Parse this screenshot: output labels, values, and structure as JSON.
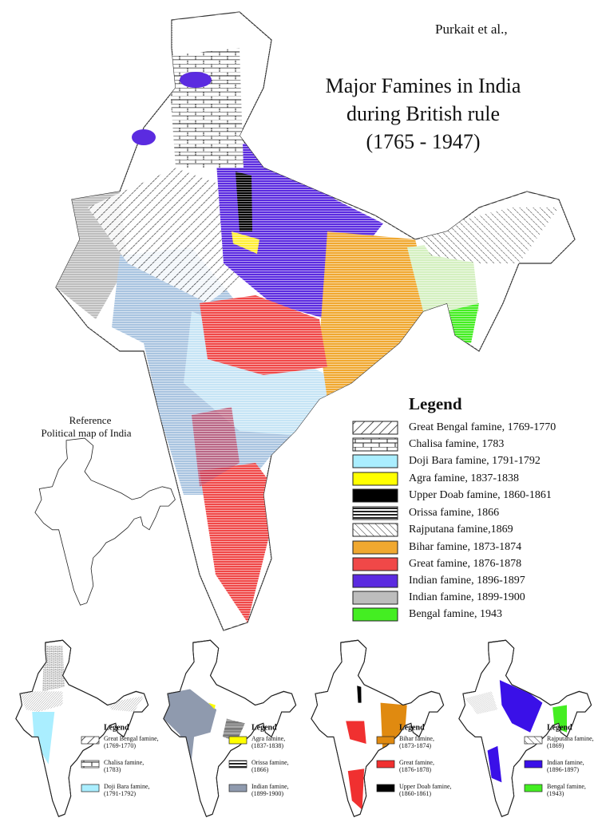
{
  "credit": "Purkait et al.,",
  "title": [
    "Major Famines in India",
    "during British rule",
    "(1765 - 1947)"
  ],
  "legend": {
    "title": "Legend",
    "items": [
      "Great Bengal famine, 1769-1770",
      "Chalisa famine, 1783",
      "Doji Bara famine, 1791-1792",
      "Agra famine, 1837-1838",
      "Upper Doab famine, 1860-1861",
      "Orissa famine, 1866",
      "Rajputana famine,1869",
      "Bihar famine, 1873-1874",
      "Great famine, 1876-1878",
      "Indian famine, 1896-1897",
      "Indian famine, 1899-1900",
      "Bengal famine, 1943"
    ]
  },
  "reference": {
    "title": "Reference",
    "subtitle": "Political map of India"
  },
  "panels": [
    {
      "legend_title": "Legend",
      "items": [
        [
          "Great Bengal famine,",
          "(1769-1770)"
        ],
        [
          "Chalisa famine,",
          "(1783)"
        ],
        [
          "Doji Bara famine,",
          "(1791-1792)"
        ]
      ]
    },
    {
      "legend_title": "Legend",
      "items": [
        [
          "Agra famine,",
          "(1837-1838)"
        ],
        [
          "Orissa famine,",
          "(1866)"
        ],
        [
          "Indian famine,",
          "(1899-1900)"
        ]
      ]
    },
    {
      "legend_title": "Legend",
      "items": [
        [
          "Bihar famine,",
          "(1873-1874)"
        ],
        [
          "Great famine,",
          "(1876-1878)"
        ],
        [
          "Upper Doab famine,",
          "(1860-1861)"
        ]
      ]
    },
    {
      "legend_title": "Legend",
      "items": [
        [
          "Rajputana famine,",
          "(1869)"
        ],
        [
          "Indian famine,",
          "(1896-1897)"
        ],
        [
          "Bengal famine,",
          "(1943)"
        ]
      ]
    }
  ]
}
